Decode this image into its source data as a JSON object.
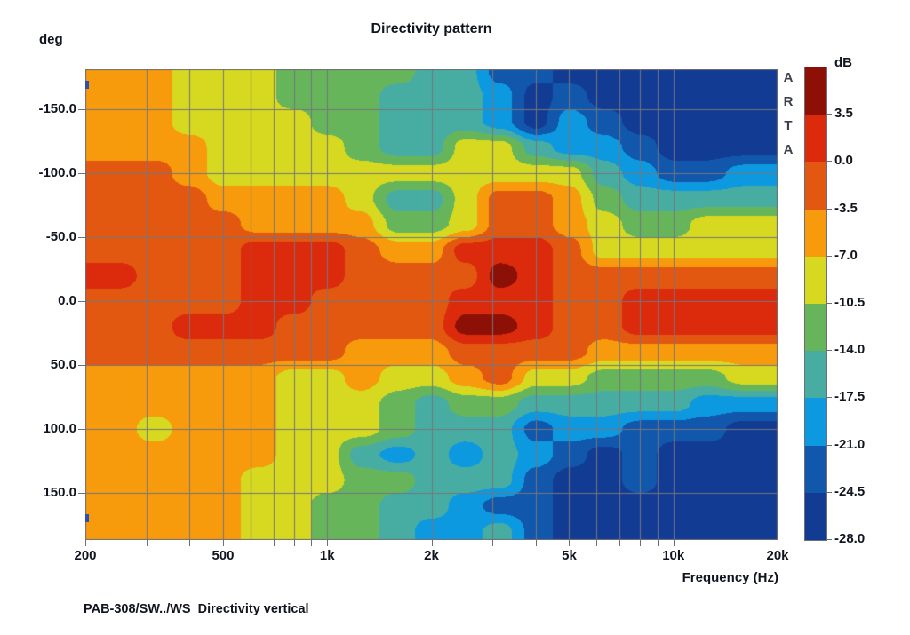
{
  "title": "Directivity pattern",
  "caption": "PAB-308/SW../WS  Directivity vertical",
  "branding": {
    "vertical_label": "ARTA"
  },
  "y_axis": {
    "label": "deg",
    "tick_labels": [
      "-150.0",
      "-100.0",
      "-50.0",
      "0.0",
      "50.0",
      "100.0",
      "150.0"
    ],
    "tick_angles": [
      -150,
      -100,
      -50,
      0,
      50,
      100,
      150
    ]
  },
  "x_axis": {
    "label": "Frequency (Hz)",
    "tick_labels": [
      "200",
      "500",
      "1k",
      "2k",
      "5k",
      "10k",
      "20k"
    ],
    "tick_freqs": [
      200,
      500,
      1000,
      2000,
      5000,
      10000,
      20000
    ],
    "minor_tick_freqs": [
      200,
      300,
      400,
      500,
      600,
      700,
      800,
      900,
      1000,
      2000,
      3000,
      4000,
      5000,
      6000,
      7000,
      8000,
      9000,
      10000,
      20000
    ]
  },
  "colorbar": {
    "label": "dB",
    "tick_labels": [
      "3.5",
      "0.0",
      "-3.5",
      "-7.0",
      "-10.5",
      "-14.0",
      "-17.5",
      "-21.0",
      "-24.5",
      "-28.0"
    ],
    "band_colors_top_to_bottom": [
      "#8c1005",
      "#dc2a0c",
      "#e25810",
      "#f79b0c",
      "#d6d920",
      "#67b55b",
      "#47ada3",
      "#0d99e0",
      "#1157ac",
      "#123c94"
    ]
  },
  "style_colors": {
    "gridline": "#75757d",
    "plot_border": "#6e6e74",
    "text": "#10141f",
    "cursor_marker": "#2b50b4",
    "background": "#ffffff"
  },
  "cursor_markers_y_deg": [
    -169,
    170
  ],
  "chart_data": {
    "type": "heatmap",
    "title": "Directivity pattern",
    "xlabel": "Frequency (Hz)",
    "ylabel": "deg",
    "x_scale": "log",
    "x_range_hz": [
      200,
      20000
    ],
    "y_range_deg": [
      -181,
      187
    ],
    "legend_position": "right-colorbar",
    "grid": "on",
    "levels_db": [
      3.5,
      0.0,
      -3.5,
      -7.0,
      -10.5,
      -14.0,
      -17.5,
      -21.0,
      -24.5,
      -28.0
    ],
    "grid_freqs_hz": [
      200,
      250,
      315,
      400,
      500,
      630,
      800,
      1000,
      1250,
      1600,
      2000,
      2500,
      3150,
      4000,
      5000,
      6300,
      8000,
      10000,
      12500,
      16000,
      20000
    ],
    "grid_angles_deg": [
      -180,
      -160,
      -140,
      -120,
      -100,
      -80,
      -60,
      -40,
      -20,
      0,
      20,
      40,
      60,
      80,
      100,
      120,
      140,
      160,
      180
    ],
    "values_db": [
      [
        -5.2,
        -5.2,
        -5.2,
        -8.8,
        -8.8,
        -8.8,
        -12.2,
        -12.2,
        -12.2,
        -12.2,
        -15.8,
        -15.8,
        -22.8,
        -22.8,
        -26.2,
        -26.2,
        -26.2,
        -26.2,
        -26.2,
        -26.2,
        -26.2
      ],
      [
        -5.2,
        -5.2,
        -5.2,
        -8.8,
        -8.8,
        -8.8,
        -12.2,
        -12.2,
        -12.2,
        -15.8,
        -15.8,
        -15.8,
        -19.2,
        -26.2,
        -22.8,
        -26.2,
        -26.2,
        -26.2,
        -26.2,
        -26.2,
        -26.2
      ],
      [
        -5.2,
        -5.2,
        -5.2,
        -8.8,
        -8.8,
        -8.8,
        -8.8,
        -12.2,
        -12.2,
        -15.8,
        -15.8,
        -15.8,
        -19.2,
        -26.2,
        -19.2,
        -22.8,
        -26.2,
        -26.2,
        -26.2,
        -26.2,
        -26.2
      ],
      [
        -5.2,
        -5.2,
        -5.2,
        -5.2,
        -8.8,
        -8.8,
        -8.8,
        -8.8,
        -12.2,
        -15.8,
        -15.8,
        -8.8,
        -8.8,
        -15.8,
        -19.2,
        -19.2,
        -22.8,
        -26.2,
        -26.2,
        -26.2,
        -26.2
      ],
      [
        -1.8,
        -1.8,
        -1.8,
        -5.2,
        -8.8,
        -8.8,
        -8.8,
        -8.8,
        -8.8,
        -8.8,
        -8.8,
        -8.8,
        -8.8,
        -8.8,
        -8.8,
        -15.8,
        -19.2,
        -22.8,
        -22.8,
        -19.2,
        -19.2
      ],
      [
        -1.8,
        -1.8,
        -1.8,
        -1.8,
        -5.2,
        -5.2,
        -5.2,
        -5.2,
        -8.8,
        -15.8,
        -15.8,
        -8.8,
        -1.8,
        -1.8,
        -5.2,
        -12.2,
        -15.8,
        -15.8,
        -15.8,
        -15.8,
        -15.8
      ],
      [
        -1.8,
        -1.8,
        -1.8,
        -1.8,
        -1.8,
        -5.2,
        -5.2,
        -5.2,
        -5.2,
        -12.2,
        -12.2,
        -8.8,
        -1.8,
        -1.8,
        -5.2,
        -8.8,
        -12.2,
        -12.2,
        -8.8,
        -8.8,
        -8.8
      ],
      [
        -1.8,
        -1.8,
        -1.8,
        -1.8,
        -1.8,
        1.8,
        1.8,
        1.8,
        -1.8,
        -5.2,
        -5.2,
        1.8,
        1.8,
        1.8,
        -1.8,
        -8.8,
        -8.8,
        -8.8,
        -8.8,
        -8.8,
        -8.8
      ],
      [
        1.8,
        1.8,
        -1.8,
        -1.8,
        -1.8,
        1.8,
        1.8,
        1.8,
        -1.8,
        -1.8,
        -1.8,
        -1.8,
        5.0,
        1.8,
        -1.8,
        -1.8,
        -1.8,
        -1.8,
        -1.8,
        -1.8,
        -1.8
      ],
      [
        -1.8,
        -1.8,
        -1.8,
        -1.8,
        -1.8,
        1.8,
        1.8,
        -1.8,
        -1.8,
        -1.8,
        -1.8,
        1.8,
        1.8,
        1.8,
        -1.8,
        -1.8,
        1.8,
        1.8,
        1.8,
        1.8,
        1.8
      ],
      [
        -1.8,
        -1.8,
        -1.8,
        1.8,
        1.8,
        1.8,
        -1.8,
        -1.8,
        -1.8,
        -1.8,
        -1.8,
        5.0,
        5.0,
        1.8,
        -1.8,
        -1.8,
        1.8,
        1.8,
        1.8,
        1.8,
        1.8
      ],
      [
        -1.8,
        -1.8,
        -1.8,
        -1.8,
        -1.8,
        -1.8,
        -1.8,
        -1.8,
        -5.2,
        -5.2,
        -5.2,
        -1.8,
        -1.8,
        -1.8,
        -1.8,
        -5.2,
        -5.2,
        -5.2,
        -5.2,
        -5.2,
        -5.2
      ],
      [
        -5.2,
        -5.2,
        -5.2,
        -5.2,
        -5.2,
        -5.2,
        -8.8,
        -8.8,
        -5.2,
        -8.8,
        -8.8,
        -5.2,
        -1.8,
        -8.8,
        -8.8,
        -12.2,
        -12.2,
        -12.2,
        -12.2,
        -8.8,
        -8.8
      ],
      [
        -5.2,
        -5.2,
        -5.2,
        -5.2,
        -5.2,
        -5.2,
        -8.8,
        -8.8,
        -8.8,
        -12.2,
        -15.8,
        -12.2,
        -12.2,
        -15.8,
        -15.8,
        -15.8,
        -15.8,
        -15.8,
        -19.2,
        -19.2,
        -19.2
      ],
      [
        -5.2,
        -5.2,
        -8.8,
        -5.2,
        -5.2,
        -5.2,
        -8.8,
        -8.8,
        -8.8,
        -12.2,
        -15.8,
        -15.8,
        -15.8,
        -22.8,
        -19.2,
        -19.2,
        -22.8,
        -22.8,
        -22.8,
        -26.2,
        -26.2
      ],
      [
        -5.2,
        -5.2,
        -5.2,
        -5.2,
        -5.2,
        -5.2,
        -8.8,
        -8.8,
        -15.8,
        -19.2,
        -15.8,
        -19.2,
        -15.8,
        -19.2,
        -22.8,
        -26.2,
        -22.8,
        -26.2,
        -26.2,
        -26.2,
        -26.2
      ],
      [
        -5.2,
        -5.2,
        -5.2,
        -5.2,
        -5.2,
        -8.8,
        -8.8,
        -8.8,
        -12.2,
        -12.2,
        -15.8,
        -15.8,
        -15.8,
        -22.8,
        -26.2,
        -26.2,
        -22.8,
        -26.2,
        -26.2,
        -26.2,
        -26.2
      ],
      [
        -5.2,
        -5.2,
        -5.2,
        -5.2,
        -5.2,
        -8.8,
        -8.8,
        -12.2,
        -12.2,
        -15.8,
        -15.8,
        -19.2,
        -22.8,
        -22.8,
        -26.2,
        -26.2,
        -26.2,
        -26.2,
        -26.2,
        -26.2,
        -26.2
      ],
      [
        -5.2,
        -5.2,
        -5.2,
        -5.2,
        -5.2,
        -8.8,
        -8.8,
        -12.2,
        -12.2,
        -15.8,
        -19.2,
        -19.2,
        -15.8,
        -22.8,
        -26.2,
        -26.2,
        -26.2,
        -26.2,
        -26.2,
        -26.2,
        -26.2
      ]
    ],
    "band_colors": [
      "#8c1005",
      "#dc2a0c",
      "#e25810",
      "#f79b0c",
      "#d6d920",
      "#67b55b",
      "#47ada3",
      "#0d99e0",
      "#1157ac",
      "#123c94"
    ],
    "gridline_freqs_hz": [
      300,
      400,
      500,
      600,
      700,
      800,
      900,
      1000,
      2000,
      3000,
      4000,
      5000,
      6000,
      7000,
      8000,
      9000,
      10000
    ],
    "gridline_angles_deg": [
      -150,
      -100,
      -50,
      0,
      50,
      100,
      150
    ]
  }
}
